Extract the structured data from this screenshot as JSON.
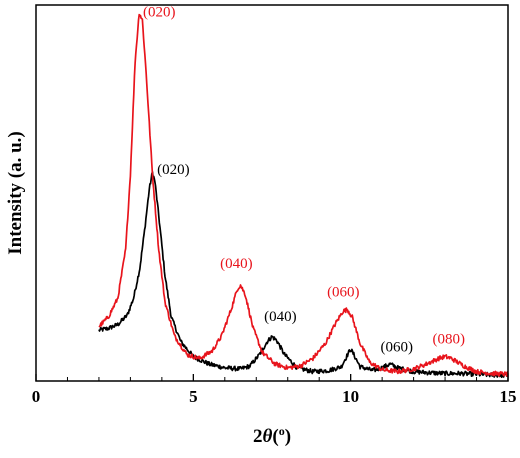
{
  "chart_data": {
    "type": "line",
    "title": "",
    "xlabel_main": "2",
    "xlabel_italic": "θ",
    "xlabel_paren_open": "(",
    "xlabel_sup": "o",
    "xlabel_paren_close": ")",
    "ylabel": "Intensity (a. u.)",
    "xlim": [
      0,
      15
    ],
    "ylim": [
      0,
      100
    ],
    "x_ticks": [
      {
        "value": 0,
        "label": "0"
      },
      {
        "value": 5,
        "label": "5"
      },
      {
        "value": 10,
        "label": "10"
      },
      {
        "value": 15,
        "label": "15"
      }
    ],
    "y_tick_labels_shown": false,
    "grid": false,
    "legend": "none",
    "series": [
      {
        "color": "#000000",
        "points": [
          [
            2.0,
            13.5
          ],
          [
            2.3,
            14.0
          ],
          [
            2.6,
            15.0
          ],
          [
            2.9,
            17.5
          ],
          [
            3.1,
            22.0
          ],
          [
            3.3,
            30.0
          ],
          [
            3.45,
            40.0
          ],
          [
            3.6,
            51.0
          ],
          [
            3.7,
            55.5
          ],
          [
            3.78,
            53.0
          ],
          [
            3.9,
            44.0
          ],
          [
            4.1,
            28.0
          ],
          [
            4.3,
            17.0
          ],
          [
            4.6,
            10.5
          ],
          [
            5.0,
            6.5
          ],
          [
            5.5,
            4.5
          ],
          [
            6.0,
            3.5
          ],
          [
            6.5,
            3.2
          ],
          [
            6.8,
            4.0
          ],
          [
            7.1,
            7.0
          ],
          [
            7.35,
            10.5
          ],
          [
            7.5,
            11.8
          ],
          [
            7.65,
            10.8
          ],
          [
            7.9,
            7.0
          ],
          [
            8.3,
            3.5
          ],
          [
            8.8,
            2.5
          ],
          [
            9.3,
            2.8
          ],
          [
            9.7,
            3.8
          ],
          [
            9.9,
            7.0
          ],
          [
            10.0,
            8.5
          ],
          [
            10.1,
            7.0
          ],
          [
            10.3,
            3.8
          ],
          [
            10.7,
            2.8
          ],
          [
            11.0,
            3.5
          ],
          [
            11.25,
            4.5
          ],
          [
            11.5,
            3.5
          ],
          [
            12.0,
            2.5
          ],
          [
            12.5,
            2.2
          ],
          [
            13.0,
            2.0
          ],
          [
            13.5,
            2.0
          ],
          [
            14.0,
            1.8
          ],
          [
            14.5,
            1.6
          ],
          [
            15.0,
            1.5
          ]
        ]
      },
      {
        "color": "#e8141c",
        "points": [
          [
            2.0,
            14.5
          ],
          [
            2.3,
            17.0
          ],
          [
            2.6,
            22.0
          ],
          [
            2.85,
            35.0
          ],
          [
            3.0,
            55.0
          ],
          [
            3.15,
            85.0
          ],
          [
            3.28,
            98.0
          ],
          [
            3.38,
            96.0
          ],
          [
            3.5,
            82.0
          ],
          [
            3.7,
            55.0
          ],
          [
            3.9,
            35.0
          ],
          [
            4.1,
            21.0
          ],
          [
            4.4,
            12.0
          ],
          [
            4.8,
            7.0
          ],
          [
            5.2,
            6.0
          ],
          [
            5.6,
            8.0
          ],
          [
            5.9,
            12.0
          ],
          [
            6.2,
            19.0
          ],
          [
            6.4,
            24.5
          ],
          [
            6.5,
            25.5
          ],
          [
            6.65,
            23.0
          ],
          [
            6.9,
            14.0
          ],
          [
            7.2,
            7.5
          ],
          [
            7.6,
            4.5
          ],
          [
            8.0,
            3.5
          ],
          [
            8.4,
            4.0
          ],
          [
            8.8,
            6.0
          ],
          [
            9.2,
            10.0
          ],
          [
            9.5,
            15.0
          ],
          [
            9.75,
            18.5
          ],
          [
            9.9,
            19.0
          ],
          [
            10.05,
            17.0
          ],
          [
            10.3,
            10.0
          ],
          [
            10.6,
            5.0
          ],
          [
            11.0,
            3.0
          ],
          [
            11.5,
            2.5
          ],
          [
            12.0,
            3.2
          ],
          [
            12.4,
            4.5
          ],
          [
            12.8,
            6.0
          ],
          [
            13.0,
            6.5
          ],
          [
            13.2,
            6.0
          ],
          [
            13.6,
            4.0
          ],
          [
            14.0,
            2.5
          ],
          [
            14.5,
            2.0
          ],
          [
            15.0,
            1.8
          ]
        ]
      }
    ],
    "annotations": [
      {
        "text": "(020)",
        "x": 3.4,
        "y": 97.0,
        "color": "#e8141c"
      },
      {
        "text": "(020)",
        "x": 3.85,
        "y": 55.0,
        "color": "#000000"
      },
      {
        "text": "(040)",
        "x": 5.85,
        "y": 30.0,
        "color": "#e8141c"
      },
      {
        "text": "(040)",
        "x": 7.25,
        "y": 16.0,
        "color": "#000000"
      },
      {
        "text": "(060)",
        "x": 9.25,
        "y": 22.5,
        "color": "#e8141c"
      },
      {
        "text": "(060)",
        "x": 10.95,
        "y": 7.8,
        "color": "#000000"
      },
      {
        "text": "(080)",
        "x": 12.6,
        "y": 10.0,
        "color": "#e8141c"
      }
    ]
  }
}
